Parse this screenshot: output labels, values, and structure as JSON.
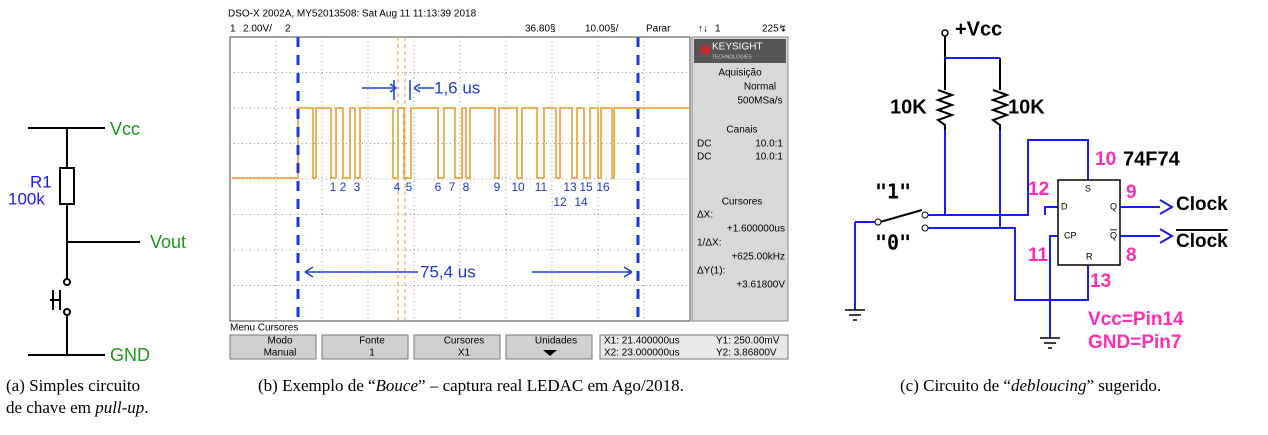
{
  "panel_a": {
    "vcc": "Vcc",
    "r1": "R1",
    "r1_value": "100k",
    "vout": "Vout",
    "gnd": "GND"
  },
  "panel_b": {
    "header": "DSO-X 2002A, MY52013508: Sat Aug 11 11:13:39 2018",
    "status": {
      "ch1": "1",
      "scale": "2.00V/",
      "ch2": "2",
      "delay": "36.80§",
      "timebase": "10.00§/",
      "state": "Parar",
      "trig_icon": "↑↓",
      "trig_src": "1",
      "trig_level": "225↯"
    },
    "annotations": {
      "short": "1,6 us",
      "long": "75,4 us",
      "pulses": [
        "1",
        "2",
        "3",
        "4",
        "5",
        "6",
        "7",
        "8",
        "9",
        "10",
        "11",
        "13",
        "15",
        "16",
        "12",
        "14"
      ]
    },
    "side": {
      "brand": "KEYSIGHT",
      "brand_sub": "TECHNOLOGIES",
      "acq_title": "Aquisição",
      "acq_mode": "Normal",
      "acq_rate": "500MSa/s",
      "ch_title": "Canais",
      "ch1_coupling": "DC",
      "ch1_probe": "10.0:1",
      "ch2_coupling": "DC",
      "ch2_probe": "10.0:1",
      "cur_title": "Cursores",
      "dx_label": "ΔX:",
      "dx": "+1.600000us",
      "inv_dx_label": "1/ΔX:",
      "inv_dx": "+625.00kHz",
      "dy_label": "ΔY(1):",
      "dy": "+3.61800V"
    },
    "menu": {
      "title": "Menu Cursores",
      "buttons": [
        {
          "label": "Modo",
          "value": "Manual"
        },
        {
          "label": "Fonte",
          "value": "1"
        },
        {
          "label": "Cursores",
          "value": "X1"
        },
        {
          "label": "Unidades"
        }
      ],
      "readouts": [
        "X1: 21.400000us",
        "X2: 23.000000us",
        "Y1: 250.00mV",
        "Y2: 3.86800V"
      ]
    }
  },
  "panel_c": {
    "vcc": "+Vcc",
    "r_left": "10K",
    "r_right": "10K",
    "sw_one": "\"1\"",
    "sw_zero": "\"0\"",
    "chip": "74F74",
    "pins": {
      "s": "10",
      "d": "12",
      "q": "9",
      "cp": "11",
      "qn": "8",
      "r": "13"
    },
    "pin_names": {
      "s": "S",
      "d": "D",
      "q": "Q",
      "cp": "CP",
      "qn": "Q",
      "r": "R"
    },
    "out_clock": "Clock",
    "out_clock_n": "Clock",
    "note_vcc": "Vcc=Pin14",
    "note_gnd": "GND=Pin7"
  },
  "captions": {
    "a": {
      "line1": "(a) Simples circuito",
      "line2": "de chave em ",
      "italic": "pull-up",
      "end": "."
    },
    "b": {
      "start": "(b) Exemplo de “",
      "italic": "Bouce",
      "end": "” – captura real LEDAC em Ago/2018."
    },
    "c": {
      "start": "(c) Circuito de “",
      "italic": "debloucing",
      "end": "” sugerido."
    }
  }
}
